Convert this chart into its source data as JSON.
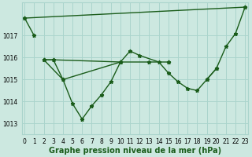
{
  "xlabel": "Graphe pression niveau de la mer (hPa)",
  "background_color": "#cce8e0",
  "grid_color": "#aad4cc",
  "line_color": "#1a5c1a",
  "xlim": [
    -0.3,
    23.3
  ],
  "ylim": [
    1012.5,
    1018.5
  ],
  "yticks": [
    1013,
    1014,
    1015,
    1016,
    1017
  ],
  "xtick_labels": [
    "0",
    "1",
    "2",
    "3",
    "4",
    "5",
    "6",
    "7",
    "8",
    "9",
    "10",
    "11",
    "12",
    "13",
    "14",
    "15",
    "16",
    "17",
    "18",
    "19",
    "20",
    "21",
    "22",
    "23"
  ],
  "series": [
    {
      "x": [
        0,
        1
      ],
      "y": [
        1017.8,
        1017.0
      ]
    },
    {
      "x": [
        0,
        23
      ],
      "y": [
        1017.8,
        1018.3
      ]
    },
    {
      "x": [
        2,
        3,
        4,
        10
      ],
      "y": [
        1015.9,
        1015.9,
        1015.0,
        1015.8
      ]
    },
    {
      "x": [
        2,
        3,
        10,
        13,
        15,
        15
      ],
      "y": [
        1015.9,
        1015.9,
        1015.8,
        1015.8,
        1015.8,
        1015.8
      ]
    },
    {
      "x": [
        2,
        4,
        5,
        6,
        7,
        8,
        9,
        10,
        11,
        12,
        14,
        15,
        16,
        17,
        18,
        19,
        20
      ],
      "y": [
        1015.9,
        1015.0,
        1013.9,
        1013.2,
        1013.8,
        1014.3,
        1014.9,
        1015.8,
        1016.3,
        1016.1,
        1015.8,
        1015.3,
        1014.9,
        1014.6,
        1014.5,
        1015.0,
        1015.5
      ]
    },
    {
      "x": [
        19,
        20,
        21,
        22,
        23
      ],
      "y": [
        1015.0,
        1015.5,
        1016.5,
        1017.1,
        1018.3
      ]
    }
  ],
  "marker": "*",
  "markersize": 3.5,
  "linewidth": 1.0,
  "xlabel_fontsize": 7,
  "xlabel_fontweight": "bold",
  "tick_fontsize": 5.5,
  "figsize": [
    3.2,
    2.0
  ],
  "dpi": 100
}
